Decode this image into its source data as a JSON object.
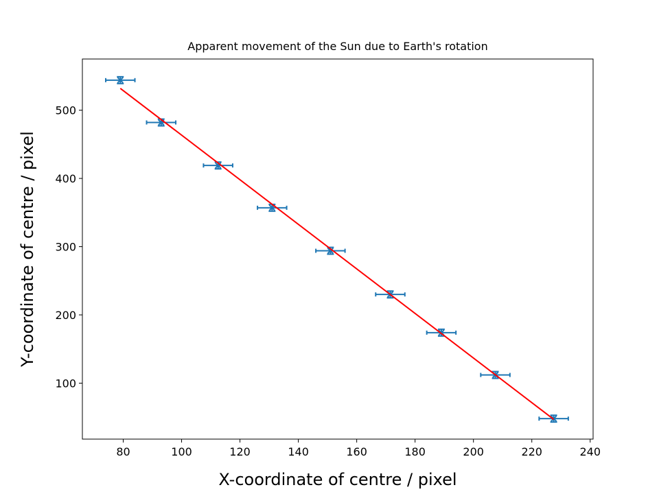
{
  "chart_data": {
    "type": "scatter",
    "title": "Apparent movement of the Sun due to Earth's rotation",
    "xlabel": "X-coordinate of centre / pixel",
    "ylabel": "Y-coordinate of centre / pixel",
    "xlim": [
      66,
      241
    ],
    "ylim": [
      18,
      575
    ],
    "xticks": [
      80,
      100,
      120,
      140,
      160,
      180,
      200,
      220,
      240
    ],
    "yticks": [
      100,
      200,
      300,
      400,
      500
    ],
    "grid": false,
    "series": [
      {
        "kind": "errorbar",
        "color": "#1f77b4",
        "marker": "x",
        "x": [
          79,
          93,
          112.5,
          131,
          151,
          171.5,
          189,
          207.5,
          227.5
        ],
        "y": [
          544,
          482,
          419,
          357,
          294,
          230,
          174,
          112,
          48
        ],
        "xerr": [
          5,
          5,
          5,
          5,
          5,
          5,
          5,
          5,
          5
        ],
        "yerr": [
          5,
          5,
          5,
          5,
          5,
          5,
          5,
          5,
          5
        ]
      },
      {
        "kind": "fit-line",
        "color": "#ff0000",
        "x": [
          79,
          227.5
        ],
        "y": [
          532,
          47
        ]
      }
    ]
  }
}
